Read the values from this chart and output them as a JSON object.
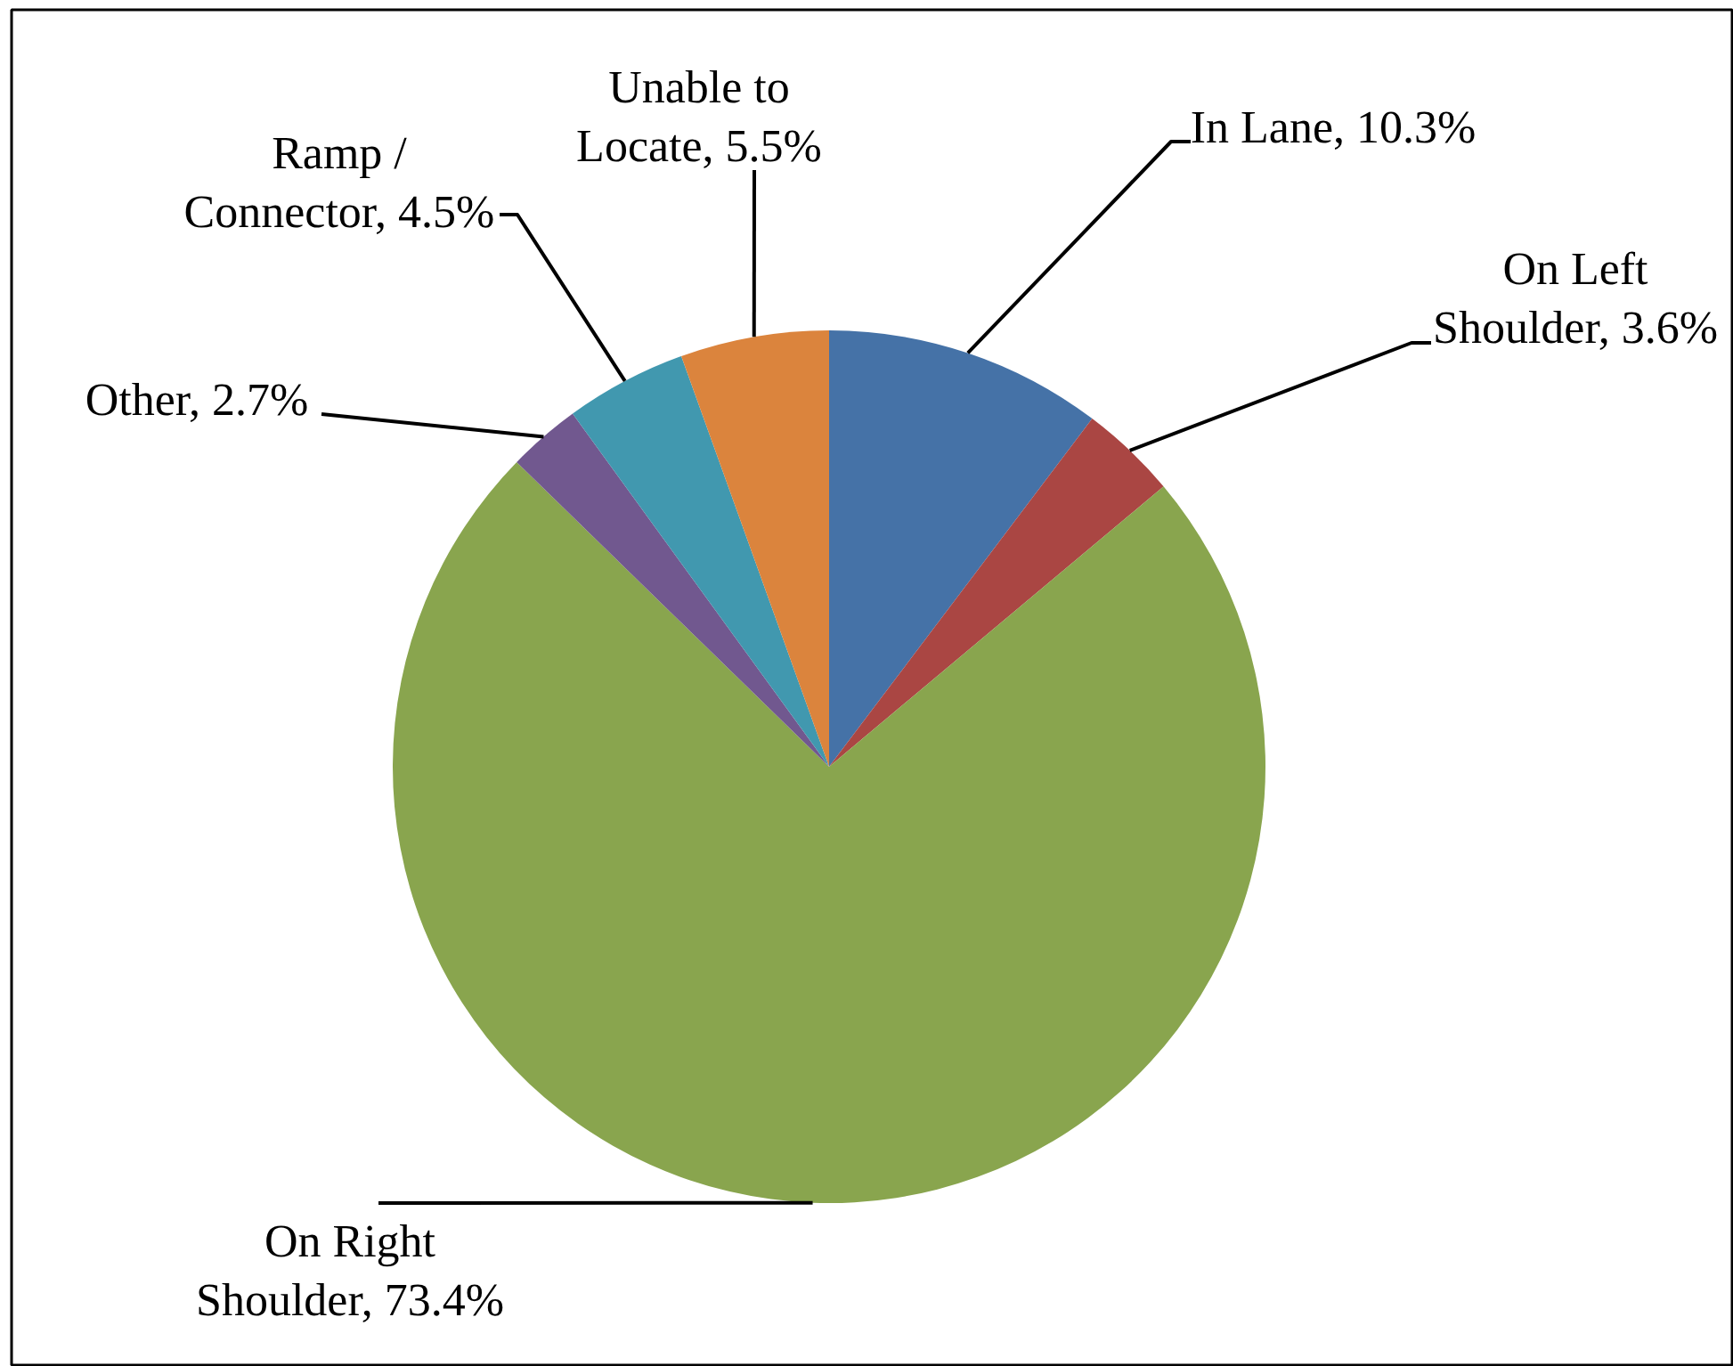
{
  "chart_data": {
    "type": "pie",
    "categories": [
      "In Lane",
      "On Left Shoulder",
      "On Right Shoulder",
      "Other",
      "Ramp / Connector",
      "Unable to Locate"
    ],
    "values": [
      10.3,
      3.6,
      73.4,
      2.7,
      4.5,
      5.5
    ],
    "colors": [
      "#4572a7",
      "#aa4643",
      "#89a54e",
      "#71588f",
      "#4198af",
      "#db843d"
    ],
    "value_labels": [
      "10.3%",
      "3.6%",
      "73.4%",
      "2.7%",
      "4.5%",
      "5.5%"
    ]
  }
}
